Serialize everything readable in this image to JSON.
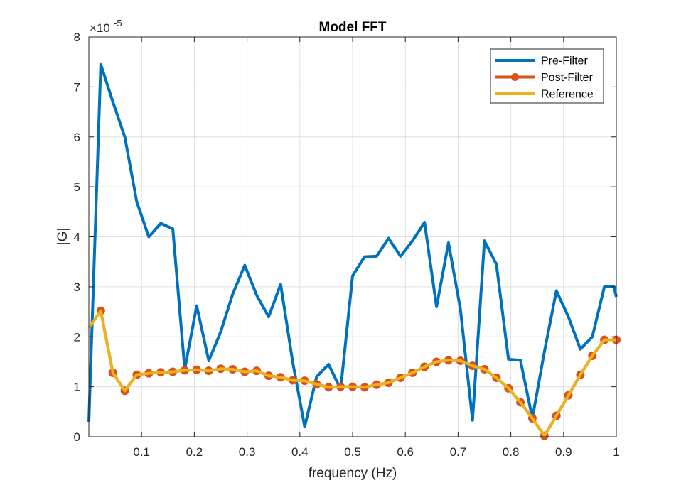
{
  "chart_data": {
    "type": "line",
    "title": "Model FFT",
    "xlabel": "frequency (Hz)",
    "ylabel": "|G|",
    "xlim": [
      0,
      1
    ],
    "ylim": [
      0,
      8
    ],
    "y_exponent_label": "×10",
    "y_exponent_power": "-5",
    "grid": true,
    "legend_position": "top-right",
    "x_ticks": [
      0.1,
      0.2,
      0.3,
      0.4,
      0.5,
      0.6,
      0.7,
      0.8,
      0.9,
      1
    ],
    "x_tick_labels": [
      "0.1",
      "0.2",
      "0.3",
      "0.4",
      "0.5",
      "0.6",
      "0.7",
      "0.8",
      "0.9",
      "1"
    ],
    "y_ticks": [
      0,
      1,
      2,
      3,
      4,
      5,
      6,
      7,
      8
    ],
    "y_tick_labels": [
      "0",
      "1",
      "2",
      "3",
      "4",
      "5",
      "6",
      "7",
      "8"
    ],
    "series": [
      {
        "name": "Pre-Filter",
        "color": "#0072BD",
        "marker": false,
        "x": [
          0.0,
          0.0227,
          0.0455,
          0.0682,
          0.0909,
          0.1136,
          0.1364,
          0.1591,
          0.1818,
          0.2045,
          0.2273,
          0.25,
          0.2727,
          0.2955,
          0.3182,
          0.3409,
          0.3636,
          0.3864,
          0.4091,
          0.4318,
          0.4545,
          0.4773,
          0.5,
          0.5227,
          0.5455,
          0.5682,
          0.5909,
          0.6136,
          0.6364,
          0.6591,
          0.6818,
          0.7045,
          0.7273,
          0.75,
          0.7727,
          0.7955,
          0.8182,
          0.8409,
          0.8636,
          0.8864,
          0.9091,
          0.9318,
          0.9545,
          0.9773,
          0.9955,
          1.0
        ],
        "values": [
          0.3,
          7.45,
          6.7,
          6.0,
          4.7,
          4.0,
          4.27,
          4.16,
          1.35,
          2.62,
          1.52,
          2.1,
          2.85,
          3.43,
          2.83,
          2.4,
          3.05,
          1.5,
          0.2,
          1.2,
          1.45,
          0.95,
          3.22,
          3.6,
          3.61,
          3.97,
          3.61,
          3.92,
          4.29,
          2.6,
          3.88,
          2.55,
          0.33,
          3.92,
          3.45,
          1.55,
          1.53,
          0.37,
          1.7,
          2.92,
          2.4,
          1.75,
          2.0,
          3.0,
          3.0,
          2.8
        ]
      },
      {
        "name": "Post-Filter",
        "color": "#D95319",
        "marker": true,
        "x": [
          0.0227,
          0.0455,
          0.0682,
          0.0909,
          0.1136,
          0.1364,
          0.1591,
          0.1818,
          0.2045,
          0.2273,
          0.25,
          0.2727,
          0.2955,
          0.3182,
          0.3409,
          0.3636,
          0.3864,
          0.4091,
          0.4318,
          0.4545,
          0.4773,
          0.5,
          0.5227,
          0.5455,
          0.5682,
          0.5909,
          0.6136,
          0.6364,
          0.6591,
          0.6818,
          0.7045,
          0.7273,
          0.75,
          0.7727,
          0.7955,
          0.8182,
          0.8409,
          0.8636,
          0.8864,
          0.9091,
          0.9318,
          0.9545,
          0.9773,
          1.0
        ],
        "values": [
          2.52,
          1.28,
          0.92,
          1.24,
          1.27,
          1.29,
          1.3,
          1.33,
          1.34,
          1.32,
          1.36,
          1.35,
          1.3,
          1.32,
          1.22,
          1.19,
          1.13,
          1.12,
          1.05,
          0.99,
          1.0,
          1.0,
          0.99,
          1.04,
          1.08,
          1.18,
          1.28,
          1.4,
          1.5,
          1.53,
          1.52,
          1.42,
          1.35,
          1.18,
          0.97,
          0.69,
          0.37,
          0.02,
          0.42,
          0.83,
          1.24,
          1.62,
          1.94,
          1.94
        ]
      },
      {
        "name": "Reference",
        "color": "#EDB120",
        "marker": false,
        "x": [
          0.0,
          0.0227,
          0.0455,
          0.0682,
          0.0909,
          0.1136,
          0.1364,
          0.1591,
          0.1818,
          0.2045,
          0.2273,
          0.25,
          0.2727,
          0.2955,
          0.3182,
          0.3409,
          0.3636,
          0.3864,
          0.4091,
          0.4318,
          0.4545,
          0.4773,
          0.5,
          0.5227,
          0.5455,
          0.5682,
          0.5909,
          0.6136,
          0.6364,
          0.6591,
          0.6818,
          0.7045,
          0.7273,
          0.75,
          0.7727,
          0.7955,
          0.8182,
          0.8409,
          0.8636,
          0.8864,
          0.9091,
          0.9318,
          0.9545,
          0.9773,
          1.0
        ],
        "values": [
          2.18,
          2.52,
          1.28,
          0.92,
          1.24,
          1.27,
          1.29,
          1.3,
          1.33,
          1.34,
          1.32,
          1.36,
          1.35,
          1.3,
          1.32,
          1.22,
          1.19,
          1.13,
          1.12,
          1.05,
          0.99,
          1.0,
          1.0,
          0.99,
          1.04,
          1.08,
          1.18,
          1.28,
          1.4,
          1.5,
          1.53,
          1.52,
          1.42,
          1.35,
          1.18,
          0.97,
          0.69,
          0.37,
          0.02,
          0.42,
          0.83,
          1.24,
          1.62,
          1.94,
          1.94
        ]
      }
    ]
  }
}
